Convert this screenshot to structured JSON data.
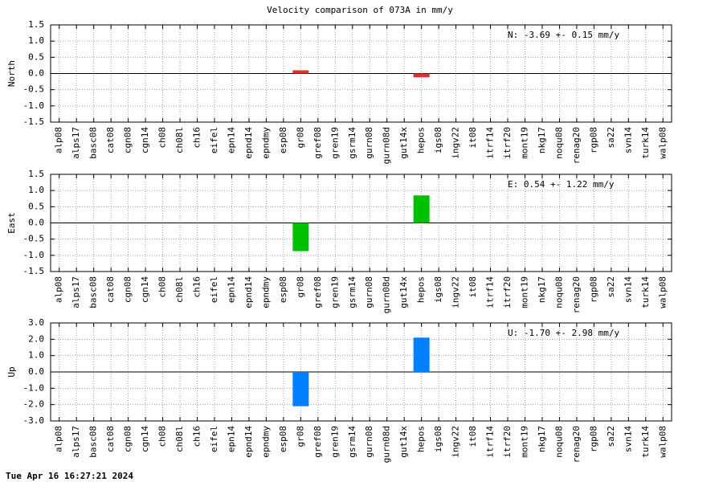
{
  "title": "Velocity comparison of 073A in mm/y",
  "footer": "Tue Apr 16 16:27:21 2024",
  "chart_data": [
    {
      "type": "bar",
      "ylabel": "North",
      "annotation": "N:  -3.69 +-  0.15 mm/y",
      "color": "#e0302f",
      "grid": true,
      "categories": [
        "alp08",
        "alps17",
        "basc08",
        "cat08",
        "cgn08",
        "cgn14",
        "ch08",
        "ch08l",
        "ch16",
        "eifel",
        "epn14",
        "epnd14",
        "epndmy",
        "esp08",
        "gr08",
        "gref08",
        "gren19",
        "gsrm14",
        "gurn08",
        "gurn08d",
        "gut14x",
        "hepos",
        "igs08",
        "ingv22",
        "it08",
        "itrf14",
        "itrf20",
        "mont19",
        "nkg17",
        "noqu08",
        "renag20",
        "rgp08",
        "sa22",
        "svn14",
        "turk14",
        "walp08"
      ],
      "values": [
        0,
        0,
        0,
        0,
        0,
        0,
        0,
        0,
        0,
        0,
        0,
        0,
        0,
        0,
        0.1,
        0,
        0,
        0,
        0,
        0,
        0,
        -0.12,
        0,
        0,
        0,
        0,
        0,
        0,
        0,
        0,
        0,
        0,
        0,
        0,
        0,
        0
      ],
      "ylim": [
        -1.5,
        1.5
      ],
      "yticks": [
        1.5,
        {
          "value": 1,
          "label": "1.0"
        },
        0.5,
        {
          "value": 0,
          "label": "0.0"
        },
        -0.5,
        {
          "value": -1,
          "label": "-1.0"
        },
        -1.5
      ]
    },
    {
      "type": "bar",
      "ylabel": "East",
      "annotation": "E:   0.54 +-  1.22 mm/y",
      "color": "#00c000",
      "grid": true,
      "categories": [
        "alp08",
        "alps17",
        "basc08",
        "cat08",
        "cgn08",
        "cgn14",
        "ch08",
        "ch08l",
        "ch16",
        "eifel",
        "epn14",
        "epnd14",
        "epndmy",
        "esp08",
        "gr08",
        "gref08",
        "gren19",
        "gsrm14",
        "gurn08",
        "gurn08d",
        "gut14x",
        "hepos",
        "igs08",
        "ingv22",
        "it08",
        "itrf14",
        "itrf20",
        "mont19",
        "nkg17",
        "noqu08",
        "renag20",
        "rgp08",
        "sa22",
        "svn14",
        "turk14",
        "walp08"
      ],
      "values": [
        0,
        0,
        0,
        0,
        0,
        0,
        0,
        0,
        0,
        0,
        0,
        0,
        0,
        0,
        -0.87,
        0,
        0,
        0,
        0,
        0,
        0,
        0.85,
        0,
        0,
        0,
        0,
        0,
        0,
        0,
        0,
        0,
        0,
        0,
        0,
        0,
        0
      ],
      "ylim": [
        -1.5,
        1.5
      ],
      "yticks": [
        1.5,
        {
          "value": 1,
          "label": "1.0"
        },
        0.5,
        {
          "value": 0,
          "label": "0.0"
        },
        -0.5,
        {
          "value": -1,
          "label": "-1.0"
        },
        -1.5
      ]
    },
    {
      "type": "bar",
      "ylabel": "Up",
      "annotation": "U:  -1.70 +-  2.98 mm/y",
      "color": "#0080ff",
      "grid": true,
      "categories": [
        "alp08",
        "alps17",
        "basc08",
        "cat08",
        "cgn08",
        "cgn14",
        "ch08",
        "ch08l",
        "ch16",
        "eifel",
        "epn14",
        "epnd14",
        "epndmy",
        "esp08",
        "gr08",
        "gref08",
        "gren19",
        "gsrm14",
        "gurn08",
        "gurn08d",
        "gut14x",
        "hepos",
        "igs08",
        "ingv22",
        "it08",
        "itrf14",
        "itrf20",
        "mont19",
        "nkg17",
        "noqu08",
        "renag20",
        "rgp08",
        "sa22",
        "svn14",
        "turk14",
        "walp08"
      ],
      "values": [
        0,
        0,
        0,
        0,
        0,
        0,
        0,
        0,
        0,
        0,
        0,
        0,
        0,
        0,
        -2.1,
        0,
        0,
        0,
        0,
        0,
        0,
        2.1,
        0,
        0,
        0,
        0,
        0,
        0,
        0,
        0,
        0,
        0,
        0,
        0,
        0,
        0
      ],
      "ylim": [
        -3,
        3
      ],
      "yticks": [
        {
          "value": 3,
          "label": "3.0"
        },
        {
          "value": 2,
          "label": "2.0"
        },
        {
          "value": 1,
          "label": "1.0"
        },
        {
          "value": 0,
          "label": "0.0"
        },
        {
          "value": -1,
          "label": "-1.0"
        },
        {
          "value": -2,
          "label": "-2.0"
        },
        {
          "value": -3,
          "label": "-3.0"
        }
      ]
    }
  ]
}
